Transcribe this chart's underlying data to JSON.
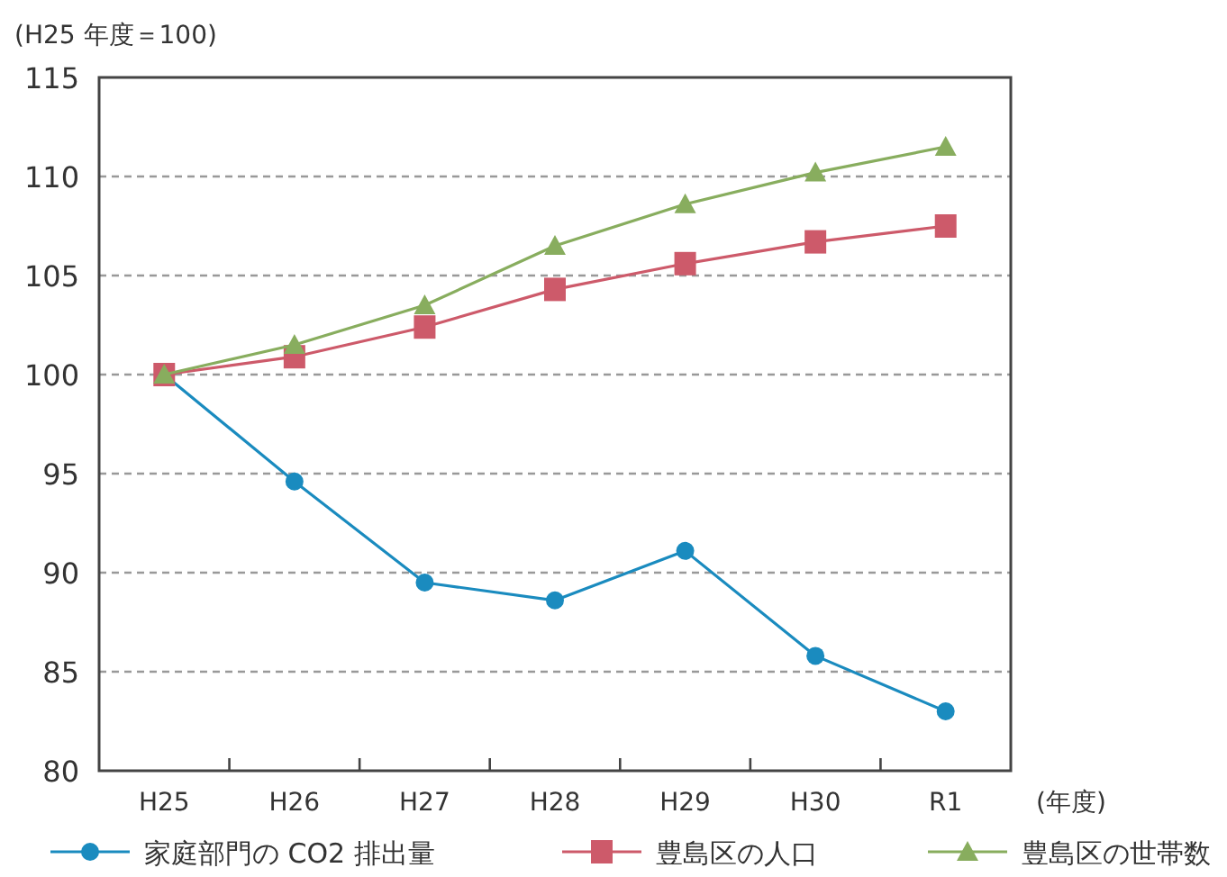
{
  "chart_data": {
    "type": "line",
    "ylabel": "(H25 年度＝100)",
    "xlabel": "(年度)",
    "categories": [
      "H25",
      "H26",
      "H27",
      "H28",
      "H29",
      "H30",
      "R1"
    ],
    "ylim": [
      80,
      115
    ],
    "yticks": [
      80,
      85,
      90,
      95,
      100,
      105,
      110,
      115
    ],
    "grid": "y",
    "legend": "bottom",
    "line_style": "solid",
    "series": [
      {
        "name": "家庭部門の CO2 排出量",
        "color": "#1a8bbf",
        "marker": "circle",
        "values": [
          100,
          94.6,
          89.5,
          88.6,
          91.1,
          85.8,
          83.0
        ]
      },
      {
        "name": "豊島区の人口",
        "color": "#cd5a6a",
        "marker": "square",
        "values": [
          100,
          100.9,
          102.4,
          104.3,
          105.6,
          106.7,
          107.5
        ]
      },
      {
        "name": "豊島区の世帯数",
        "color": "#88ad5e",
        "marker": "triangle",
        "values": [
          100,
          101.5,
          103.5,
          106.5,
          108.6,
          110.2,
          111.5
        ]
      }
    ]
  }
}
